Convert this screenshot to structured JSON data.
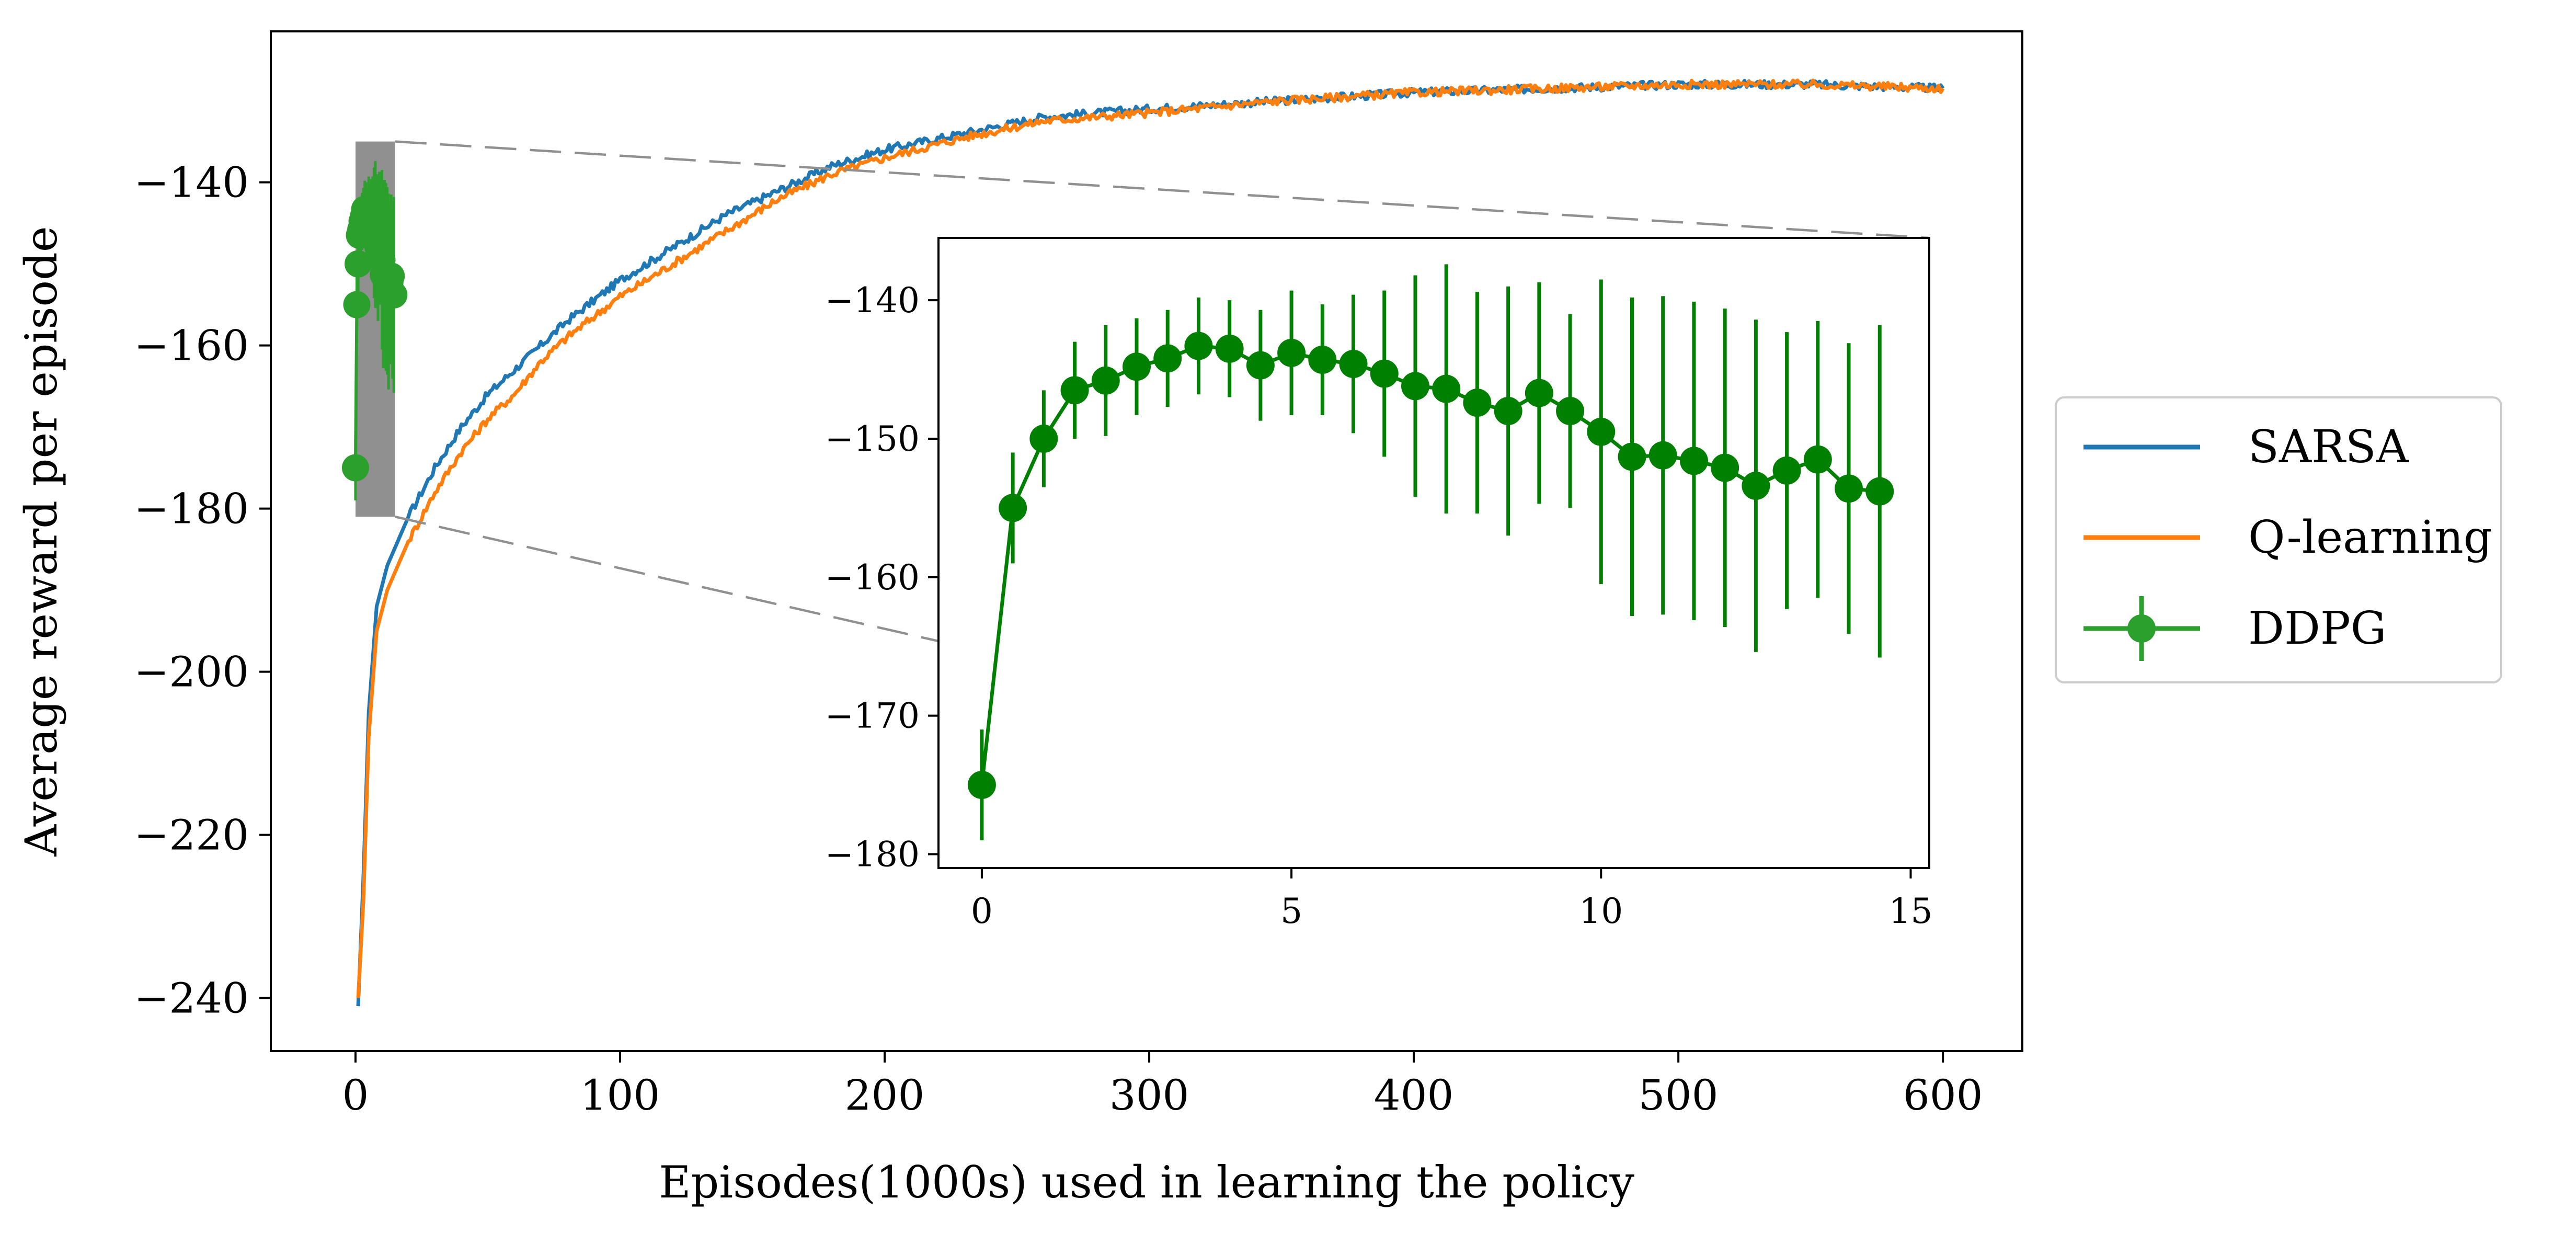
{
  "chart_data": [
    {
      "id": "main",
      "type": "line",
      "title": "",
      "xlabel": "Episodes(1000s) used in learning the policy",
      "ylabel": "Average reward per episode",
      "xlim": [
        -32,
        630
      ],
      "ylim": [
        -246.5,
        -121.5
      ],
      "xticks": [
        0,
        100,
        200,
        300,
        400,
        500,
        600
      ],
      "yticks": [
        -240,
        -220,
        -200,
        -180,
        -160,
        -140
      ],
      "xtick_labels": [
        "0",
        "100",
        "200",
        "300",
        "400",
        "500",
        "600"
      ],
      "ytick_labels": [
        "−240",
        "−220",
        "−200",
        "−180",
        "−160",
        "−140"
      ],
      "grid": false,
      "legend_position": "outside-right",
      "series": [
        {
          "name": "SARSA",
          "color": "#1f77b4",
          "x": [
            1,
            3,
            5,
            8,
            12,
            16,
            20,
            25,
            30,
            40,
            50,
            60,
            70,
            80,
            100,
            120,
            140,
            160,
            180,
            200,
            230,
            260,
            300,
            350,
            400,
            450,
            500,
            550,
            600
          ],
          "y": [
            -241,
            -225,
            -205,
            -192,
            -187,
            -184,
            -181,
            -178,
            -175,
            -170,
            -166,
            -163,
            -160,
            -157,
            -152,
            -148,
            -144,
            -141,
            -138,
            -136,
            -134,
            -132,
            -131,
            -130,
            -129,
            -128.5,
            -128,
            -128,
            -128.5
          ]
        },
        {
          "name": "Q-learning",
          "color": "#ff7f0e",
          "x": [
            1,
            3,
            5,
            8,
            12,
            16,
            20,
            25,
            30,
            40,
            50,
            60,
            70,
            80,
            100,
            120,
            140,
            160,
            180,
            200,
            230,
            260,
            300,
            350,
            400,
            450,
            500,
            550,
            600
          ],
          "y": [
            -240,
            -228,
            -208,
            -195,
            -190,
            -187,
            -184,
            -181,
            -178,
            -173,
            -169,
            -166,
            -162,
            -159,
            -154,
            -150,
            -146,
            -142,
            -139,
            -137,
            -134.5,
            -132.5,
            -131.5,
            -130,
            -129,
            -128.5,
            -128,
            -128,
            -128.5
          ]
        },
        {
          "name": "DDPG",
          "color": "#2ca02c",
          "marker": "circle",
          "errorbars": true,
          "x": [
            0,
            0.5,
            1,
            1.5,
            2,
            2.5,
            3,
            3.5,
            4,
            4.5,
            5,
            5.5,
            6,
            6.5,
            7,
            7.5,
            8,
            8.5,
            9,
            9.5,
            10,
            10.5,
            11,
            11.5,
            12,
            12.5,
            13,
            13.5,
            14,
            14.5
          ],
          "y": [
            -175,
            -155,
            -150,
            -146.5,
            -145.8,
            -144.8,
            -144.2,
            -143.3,
            -143.5,
            -144.7,
            -143.8,
            -144.3,
            -144.6,
            -145.3,
            -146.2,
            -146.4,
            -147.4,
            -148,
            -146.7,
            -148,
            -149.5,
            -151.3,
            -151.2,
            -151.6,
            -152.1,
            -153.4,
            -152.3,
            -151.5,
            -153.6,
            -153.8
          ],
          "yerr": [
            4,
            4,
            3.5,
            3.5,
            4,
            3.5,
            3.5,
            3.5,
            3.5,
            4,
            4.5,
            4,
            5,
            6,
            8,
            9,
            8,
            9,
            8,
            7,
            11,
            11.5,
            11.5,
            11.5,
            11.5,
            12,
            10,
            10,
            10.5,
            12
          ]
        }
      ],
      "zoom_box": {
        "x": [
          0,
          15
        ],
        "y": [
          -181,
          -135
        ]
      }
    },
    {
      "id": "inset",
      "type": "line",
      "title": "",
      "xlabel": "",
      "ylabel": "",
      "xlim": [
        -0.7,
        15.3
      ],
      "ylim": [
        -181,
        -135.5
      ],
      "xticks": [
        0,
        5,
        10,
        15
      ],
      "yticks": [
        -180,
        -170,
        -160,
        -150,
        -140
      ],
      "xtick_labels": [
        "0",
        "5",
        "10",
        "15"
      ],
      "ytick_labels": [
        "−180",
        "−170",
        "−160",
        "−150",
        "−140"
      ],
      "grid": false,
      "series": [
        {
          "name": "DDPG",
          "color": "#008000",
          "marker": "circle",
          "errorbars": true,
          "x": [
            0,
            0.5,
            1,
            1.5,
            2,
            2.5,
            3,
            3.5,
            4,
            4.5,
            5,
            5.5,
            6,
            6.5,
            7,
            7.5,
            8,
            8.5,
            9,
            9.5,
            10,
            10.5,
            11,
            11.5,
            12,
            12.5,
            13,
            13.5,
            14,
            14.5
          ],
          "y": [
            -175,
            -155,
            -150,
            -146.5,
            -145.8,
            -144.8,
            -144.2,
            -143.3,
            -143.5,
            -144.7,
            -143.8,
            -144.3,
            -144.6,
            -145.3,
            -146.2,
            -146.4,
            -147.4,
            -148,
            -146.7,
            -148,
            -149.5,
            -151.3,
            -151.2,
            -151.6,
            -152.1,
            -153.4,
            -152.3,
            -151.5,
            -153.6,
            -153.8
          ],
          "yerr": [
            4,
            4,
            3.5,
            3.5,
            4,
            3.5,
            3.5,
            3.5,
            3.5,
            4,
            4.5,
            4,
            5,
            6,
            8,
            9,
            8,
            9,
            8,
            7,
            11,
            11.5,
            11.5,
            11.5,
            11.5,
            12,
            10,
            10,
            10.5,
            12
          ]
        }
      ]
    }
  ]
}
